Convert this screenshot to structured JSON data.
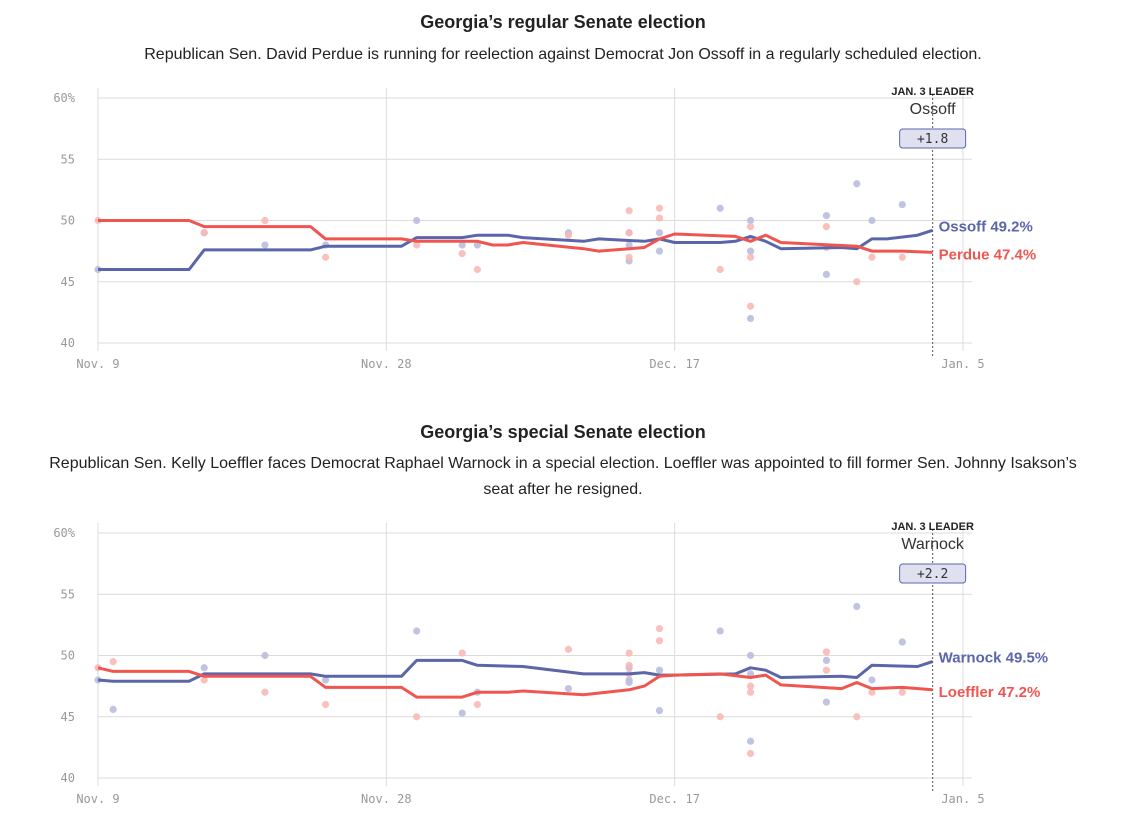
{
  "colors": {
    "dem": "#5b66aa",
    "rep": "#ef5650",
    "dem_dot": "#b9bedf",
    "rep_dot": "#f8b9b6"
  },
  "chart_data": [
    {
      "type": "line",
      "title": "Georgia’s regular Senate election",
      "subtitle": "Republican Sen. David Perdue is running for reelection against Democrat Jon Ossoff in a regularly scheduled election.",
      "x_ticks": [
        {
          "label": "Nov. 9",
          "day": 0
        },
        {
          "label": "Nov. 28",
          "day": 19
        },
        {
          "label": "Dec. 17",
          "day": 38
        },
        {
          "label": "Jan. 5",
          "day": 57
        }
      ],
      "y_ticks": [
        {
          "label": "60%",
          "value": 60
        },
        {
          "label": "55",
          "value": 55
        },
        {
          "label": "50",
          "value": 50
        },
        {
          "label": "45",
          "value": 45
        },
        {
          "label": "40",
          "value": 40
        }
      ],
      "ylim": [
        40,
        60
      ],
      "xlim": [
        0,
        57
      ],
      "leader": {
        "title": "JAN. 3 LEADER",
        "name": "Ossoff",
        "margin": "+1.8",
        "day": 55
      },
      "series": [
        {
          "name": "Ossoff",
          "party": "dem",
          "end_label": "Ossoff 49.2%",
          "points": [
            [
              0,
              46
            ],
            [
              6,
              46
            ],
            [
              7,
              47.6
            ],
            [
              14,
              47.6
            ],
            [
              15,
              47.9
            ],
            [
              20,
              47.9
            ],
            [
              21,
              48.6
            ],
            [
              24,
              48.6
            ],
            [
              25,
              48.8
            ],
            [
              27,
              48.8
            ],
            [
              28,
              48.6
            ],
            [
              32,
              48.3
            ],
            [
              33,
              48.5
            ],
            [
              36,
              48.3
            ],
            [
              37,
              48.5
            ],
            [
              38,
              48.2
            ],
            [
              41,
              48.2
            ],
            [
              42,
              48.3
            ],
            [
              43,
              48.7
            ],
            [
              44,
              48.3
            ],
            [
              45,
              47.7
            ],
            [
              49,
              47.8
            ],
            [
              50,
              47.7
            ],
            [
              51,
              48.5
            ],
            [
              52,
              48.5
            ],
            [
              54,
              48.8
            ],
            [
              55,
              49.2
            ]
          ]
        },
        {
          "name": "Perdue",
          "party": "rep",
          "end_label": "Perdue 47.4%",
          "points": [
            [
              0,
              50
            ],
            [
              6,
              50
            ],
            [
              7,
              49.5
            ],
            [
              14,
              49.5
            ],
            [
              15,
              48.5
            ],
            [
              20,
              48.5
            ],
            [
              21,
              48.3
            ],
            [
              25,
              48.3
            ],
            [
              26,
              48
            ],
            [
              27,
              48
            ],
            [
              28,
              48.2
            ],
            [
              32,
              47.7
            ],
            [
              33,
              47.5
            ],
            [
              35,
              47.7
            ],
            [
              36,
              47.8
            ],
            [
              37,
              48.5
            ],
            [
              38,
              48.9
            ],
            [
              42,
              48.7
            ],
            [
              43,
              48.3
            ],
            [
              44,
              48.8
            ],
            [
              45,
              48.2
            ],
            [
              50,
              47.9
            ],
            [
              51,
              47.5
            ],
            [
              53,
              47.5
            ],
            [
              55,
              47.4
            ]
          ]
        }
      ],
      "polls": [
        {
          "party": "dem",
          "day": 0,
          "value": 46
        },
        {
          "party": "rep",
          "day": 0,
          "value": 50
        },
        {
          "party": "dem",
          "day": 7,
          "value": 49
        },
        {
          "party": "rep",
          "day": 7,
          "value": 49
        },
        {
          "party": "dem",
          "day": 11,
          "value": 48
        },
        {
          "party": "rep",
          "day": 11,
          "value": 50
        },
        {
          "party": "dem",
          "day": 15,
          "value": 48
        },
        {
          "party": "rep",
          "day": 15,
          "value": 47
        },
        {
          "party": "dem",
          "day": 21,
          "value": 50
        },
        {
          "party": "rep",
          "day": 21,
          "value": 48
        },
        {
          "party": "dem",
          "day": 24,
          "value": 48
        },
        {
          "party": "rep",
          "day": 24,
          "value": 47.3
        },
        {
          "party": "dem",
          "day": 25,
          "value": 48
        },
        {
          "party": "rep",
          "day": 25,
          "value": 46
        },
        {
          "party": "dem",
          "day": 31,
          "value": 49
        },
        {
          "party": "rep",
          "day": 31,
          "value": 48.8
        },
        {
          "party": "dem",
          "day": 35,
          "value": 46.7
        },
        {
          "party": "rep",
          "day": 35,
          "value": 50.8
        },
        {
          "party": "dem",
          "day": 35,
          "value": 49
        },
        {
          "party": "rep",
          "day": 35,
          "value": 47
        },
        {
          "party": "dem",
          "day": 35,
          "value": 48
        },
        {
          "party": "rep",
          "day": 35,
          "value": 49
        },
        {
          "party": "dem",
          "day": 37,
          "value": 47.5
        },
        {
          "party": "rep",
          "day": 37,
          "value": 51
        },
        {
          "party": "dem",
          "day": 37,
          "value": 49
        },
        {
          "party": "rep",
          "day": 37,
          "value": 50.2
        },
        {
          "party": "dem",
          "day": 41,
          "value": 51
        },
        {
          "party": "rep",
          "day": 41,
          "value": 46
        },
        {
          "party": "dem",
          "day": 43,
          "value": 42
        },
        {
          "party": "rep",
          "day": 43,
          "value": 43
        },
        {
          "party": "dem",
          "day": 43,
          "value": 50
        },
        {
          "party": "rep",
          "day": 43,
          "value": 49.5
        },
        {
          "party": "dem",
          "day": 43,
          "value": 47.5
        },
        {
          "party": "rep",
          "day": 43,
          "value": 47
        },
        {
          "party": "dem",
          "day": 48,
          "value": 50.4
        },
        {
          "party": "rep",
          "day": 48,
          "value": 49.5
        },
        {
          "party": "dem",
          "day": 48,
          "value": 45.6
        },
        {
          "party": "rep",
          "day": 48,
          "value": 47.8
        },
        {
          "party": "dem",
          "day": 50,
          "value": 53
        },
        {
          "party": "rep",
          "day": 50,
          "value": 45
        },
        {
          "party": "dem",
          "day": 51,
          "value": 50
        },
        {
          "party": "rep",
          "day": 51,
          "value": 47
        },
        {
          "party": "dem",
          "day": 53,
          "value": 51.3
        },
        {
          "party": "rep",
          "day": 53,
          "value": 47
        }
      ]
    },
    {
      "type": "line",
      "title": "Georgia’s special Senate election",
      "subtitle": "Republican Sen. Kelly Loeffler faces Democrat Raphael Warnock in a special election. Loeffler was appointed to fill former Sen. Johnny Isakson’s seat after he resigned.",
      "x_ticks": [
        {
          "label": "Nov. 9",
          "day": 0
        },
        {
          "label": "Nov. 28",
          "day": 19
        },
        {
          "label": "Dec. 17",
          "day": 38
        },
        {
          "label": "Jan. 5",
          "day": 57
        }
      ],
      "y_ticks": [
        {
          "label": "60%",
          "value": 60
        },
        {
          "label": "55",
          "value": 55
        },
        {
          "label": "50",
          "value": 50
        },
        {
          "label": "45",
          "value": 45
        },
        {
          "label": "40",
          "value": 40
        }
      ],
      "ylim": [
        40,
        60
      ],
      "xlim": [
        0,
        57
      ],
      "leader": {
        "title": "JAN. 3 LEADER",
        "name": "Warnock",
        "margin": "+2.2",
        "day": 55
      },
      "series": [
        {
          "name": "Warnock",
          "party": "dem",
          "end_label": "Warnock 49.5%",
          "points": [
            [
              0,
              48
            ],
            [
              1,
              47.9
            ],
            [
              6,
              47.9
            ],
            [
              7,
              48.5
            ],
            [
              14,
              48.5
            ],
            [
              15,
              48.3
            ],
            [
              20,
              48.3
            ],
            [
              21,
              49.6
            ],
            [
              24,
              49.6
            ],
            [
              25,
              49.2
            ],
            [
              28,
              49.1
            ],
            [
              32,
              48.5
            ],
            [
              35,
              48.5
            ],
            [
              36,
              48.6
            ],
            [
              37,
              48.4
            ],
            [
              38,
              48.4
            ],
            [
              42,
              48.5
            ],
            [
              43,
              49
            ],
            [
              44,
              48.8
            ],
            [
              45,
              48.2
            ],
            [
              49,
              48.3
            ],
            [
              50,
              48.2
            ],
            [
              51,
              49.2
            ],
            [
              54,
              49.1
            ],
            [
              55,
              49.5
            ]
          ]
        },
        {
          "name": "Loeffler",
          "party": "rep",
          "end_label": "Loeffler 47.2%",
          "points": [
            [
              0,
              49
            ],
            [
              1,
              48.7
            ],
            [
              6,
              48.7
            ],
            [
              7,
              48.3
            ],
            [
              14,
              48.3
            ],
            [
              15,
              47.4
            ],
            [
              20,
              47.4
            ],
            [
              21,
              46.6
            ],
            [
              24,
              46.6
            ],
            [
              25,
              47
            ],
            [
              27,
              47
            ],
            [
              28,
              47.1
            ],
            [
              32,
              46.8
            ],
            [
              35,
              47.2
            ],
            [
              36,
              47.5
            ],
            [
              37,
              48.3
            ],
            [
              38,
              48.4
            ],
            [
              41,
              48.5
            ],
            [
              43,
              48.2
            ],
            [
              44,
              48.4
            ],
            [
              45,
              47.6
            ],
            [
              49,
              47.3
            ],
            [
              50,
              47.8
            ],
            [
              51,
              47.3
            ],
            [
              53,
              47.4
            ],
            [
              55,
              47.2
            ]
          ]
        }
      ],
      "polls": [
        {
          "party": "dem",
          "day": 0,
          "value": 48
        },
        {
          "party": "rep",
          "day": 0,
          "value": 49
        },
        {
          "party": "dem",
          "day": 1,
          "value": 45.6
        },
        {
          "party": "rep",
          "day": 1,
          "value": 49.5
        },
        {
          "party": "dem",
          "day": 7,
          "value": 49
        },
        {
          "party": "rep",
          "day": 7,
          "value": 48
        },
        {
          "party": "dem",
          "day": 11,
          "value": 50
        },
        {
          "party": "rep",
          "day": 11,
          "value": 47
        },
        {
          "party": "dem",
          "day": 15,
          "value": 48
        },
        {
          "party": "rep",
          "day": 15,
          "value": 46
        },
        {
          "party": "dem",
          "day": 21,
          "value": 52
        },
        {
          "party": "rep",
          "day": 21,
          "value": 45
        },
        {
          "party": "dem",
          "day": 24,
          "value": 45.3
        },
        {
          "party": "rep",
          "day": 24,
          "value": 50.2
        },
        {
          "party": "dem",
          "day": 25,
          "value": 47
        },
        {
          "party": "rep",
          "day": 25,
          "value": 46
        },
        {
          "party": "dem",
          "day": 31,
          "value": 47.3
        },
        {
          "party": "rep",
          "day": 31,
          "value": 50.5
        },
        {
          "party": "dem",
          "day": 35,
          "value": 48
        },
        {
          "party": "rep",
          "day": 35,
          "value": 50.2
        },
        {
          "party": "dem",
          "day": 35,
          "value": 49
        },
        {
          "party": "rep",
          "day": 35,
          "value": 48.5
        },
        {
          "party": "dem",
          "day": 35,
          "value": 47.8
        },
        {
          "party": "rep",
          "day": 35,
          "value": 49.2
        },
        {
          "party": "dem",
          "day": 37,
          "value": 45.5
        },
        {
          "party": "rep",
          "day": 37,
          "value": 52.2
        },
        {
          "party": "dem",
          "day": 37,
          "value": 48.8
        },
        {
          "party": "rep",
          "day": 37,
          "value": 51.2
        },
        {
          "party": "dem",
          "day": 41,
          "value": 52
        },
        {
          "party": "rep",
          "day": 41,
          "value": 45
        },
        {
          "party": "dem",
          "day": 43,
          "value": 43
        },
        {
          "party": "rep",
          "day": 43,
          "value": 42
        },
        {
          "party": "dem",
          "day": 43,
          "value": 50
        },
        {
          "party": "rep",
          "day": 43,
          "value": 47.5
        },
        {
          "party": "dem",
          "day": 43,
          "value": 48.5
        },
        {
          "party": "rep",
          "day": 43,
          "value": 47
        },
        {
          "party": "dem",
          "day": 48,
          "value": 49.6
        },
        {
          "party": "rep",
          "day": 48,
          "value": 50.3
        },
        {
          "party": "dem",
          "day": 48,
          "value": 46.2
        },
        {
          "party": "rep",
          "day": 48,
          "value": 48.8
        },
        {
          "party": "dem",
          "day": 50,
          "value": 54
        },
        {
          "party": "rep",
          "day": 50,
          "value": 45
        },
        {
          "party": "dem",
          "day": 51,
          "value": 48
        },
        {
          "party": "rep",
          "day": 51,
          "value": 47
        },
        {
          "party": "dem",
          "day": 53,
          "value": 51.1
        },
        {
          "party": "rep",
          "day": 53,
          "value": 47
        }
      ]
    }
  ]
}
